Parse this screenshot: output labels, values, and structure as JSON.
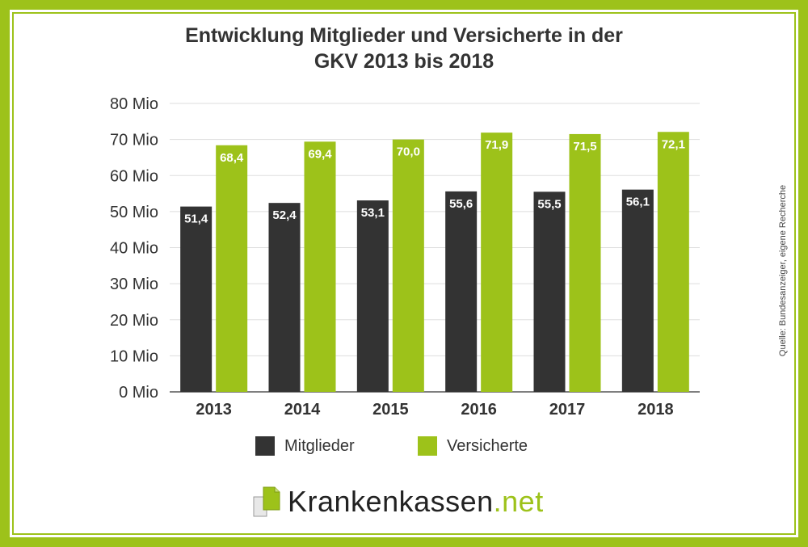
{
  "title_lines": [
    "Entwicklung Mitglieder und Versicherte in der",
    "GKV 2013 bis 2018"
  ],
  "source": "Quelle: Bundesanzeiger, eigene Recherche",
  "brand": {
    "name": "Krankenkassen",
    "suffix": ".net",
    "icon": "documents-icon"
  },
  "colors": {
    "mitglieder": "#333333",
    "versicherte": "#9dc21a",
    "frame": "#9dc21a"
  },
  "chart_data": {
    "type": "bar",
    "title": "Entwicklung Mitglieder und Versicherte in der GKV 2013 bis 2018",
    "categories": [
      "2013",
      "2014",
      "2015",
      "2016",
      "2017",
      "2018"
    ],
    "series": [
      {
        "name": "Mitglieder",
        "values": [
          51.4,
          52.4,
          53.1,
          55.6,
          55.5,
          56.1
        ],
        "labels": [
          "51,4",
          "52,4",
          "53,1",
          "55,6",
          "55,5",
          "56,1"
        ]
      },
      {
        "name": "Versicherte",
        "values": [
          68.4,
          69.4,
          70.0,
          71.9,
          71.5,
          72.1
        ],
        "labels": [
          "68,4",
          "69,4",
          "70,0",
          "71,9",
          "71,5",
          "72,1"
        ]
      }
    ],
    "ylim": [
      0,
      80
    ],
    "yticks": [
      0,
      10,
      20,
      30,
      40,
      50,
      60,
      70,
      80
    ],
    "ytick_labels": [
      "0 Mio",
      "10 Mio",
      "20 Mio",
      "30 Mio",
      "40 Mio",
      "50 Mio",
      "60 Mio",
      "70 Mio",
      "80 Mio"
    ],
    "grid": true,
    "legend": "bottom"
  }
}
